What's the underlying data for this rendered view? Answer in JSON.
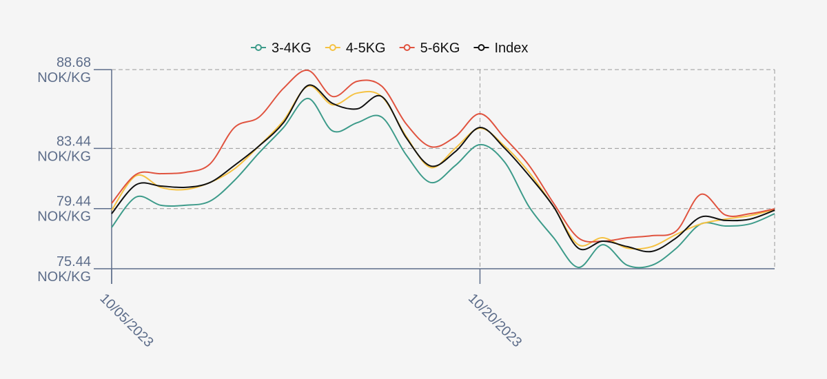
{
  "chart_data": {
    "type": "line",
    "categories": [
      "10/05/2023",
      null,
      null,
      null,
      null,
      null,
      null,
      null,
      null,
      null,
      null,
      null,
      null,
      null,
      null,
      "10/20/2023",
      null,
      null,
      null,
      null,
      null,
      null,
      null,
      null,
      null,
      null,
      null,
      null
    ],
    "series": [
      {
        "name": "3-4KG",
        "color": "#3d9b8a",
        "values": [
          78.19,
          80.21,
          79.66,
          79.66,
          79.93,
          81.31,
          83.14,
          84.83,
          86.76,
          84.6,
          85.15,
          85.52,
          83.0,
          81.17,
          82.31,
          83.69,
          82.54,
          79.56,
          77.5,
          75.53,
          77.04,
          75.67,
          75.67,
          76.81,
          78.42,
          78.28,
          78.42,
          79.1
        ]
      },
      {
        "name": "4-5KG",
        "color": "#f5c242",
        "values": [
          79.33,
          81.63,
          80.85,
          80.71,
          81.17,
          82.08,
          83.6,
          85.29,
          87.58,
          86.34,
          87.12,
          86.89,
          84.23,
          82.17,
          83.46,
          84.78,
          83.6,
          81.85,
          79.56,
          77.04,
          77.5,
          76.81,
          76.91,
          77.73,
          78.42,
          78.74,
          78.97,
          79.38
        ]
      },
      {
        "name": "5-6KG",
        "color": "#e0533f",
        "values": [
          79.79,
          81.72,
          81.76,
          81.85,
          82.4,
          84.83,
          85.52,
          87.44,
          88.63,
          86.89,
          87.9,
          87.58,
          85.06,
          83.55,
          84.23,
          85.75,
          84.14,
          82.31,
          79.79,
          77.5,
          77.27,
          77.5,
          77.64,
          77.96,
          80.39,
          79.01,
          79.1,
          79.42
        ]
      },
      {
        "name": "Index",
        "color": "#111111",
        "values": [
          79.1,
          81.03,
          80.94,
          80.85,
          81.17,
          82.31,
          83.6,
          85.15,
          87.63,
          86.43,
          86.07,
          86.89,
          84.14,
          82.27,
          83.23,
          84.83,
          83.46,
          81.63,
          79.56,
          76.81,
          77.27,
          76.91,
          76.59,
          77.5,
          78.88,
          78.65,
          78.74,
          79.33
        ]
      }
    ],
    "ylim": [
      75.44,
      88.68
    ],
    "yticks": [
      {
        "value": 75.44,
        "label": "75.44 NOK/KG"
      },
      {
        "value": 79.44,
        "label": "79.44 NOK/KG"
      },
      {
        "value": 83.44,
        "label": "83.44 NOK/KG"
      },
      {
        "value": 88.68,
        "label": "88.68 NOK/KG"
      }
    ],
    "grid": true,
    "legend": "top"
  }
}
